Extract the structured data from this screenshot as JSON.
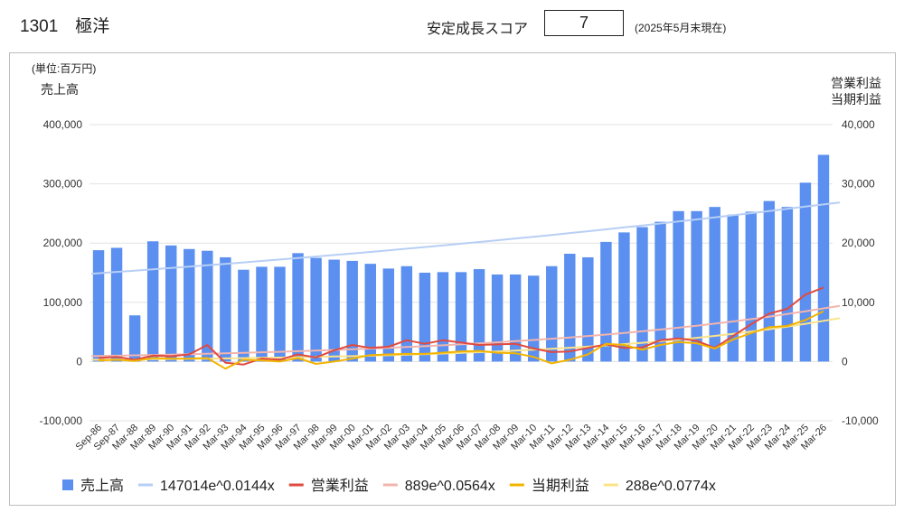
{
  "header": {
    "company": "1301　極洋",
    "score_label": "安定成長スコア",
    "score_value": "7",
    "score_date": "(2025年5月末現在)"
  },
  "chart_data": {
    "type": "bar",
    "unit_label": "(単位:百万円)",
    "ylabel_left": "売上高",
    "ylabel_right_line1": "営業利益",
    "ylabel_right_line2": "当期利益",
    "ylim_left": [
      -100000,
      400000
    ],
    "ylim_right": [
      -10000,
      40000
    ],
    "yticks_left": [
      "400,000",
      "300,000",
      "200,000",
      "100,000",
      "0",
      "-100,000"
    ],
    "yticks_right": [
      "40,000",
      "30,000",
      "20,000",
      "10,000",
      "0",
      "-10,000"
    ],
    "grid": true,
    "legend_position": "bottom",
    "categories": [
      "Sep-86",
      "Sep-87",
      "Mar-88",
      "Mar-89",
      "Mar-90",
      "Mar-91",
      "Mar-92",
      "Mar-93",
      "Mar-94",
      "Mar-95",
      "Mar-96",
      "Mar-97",
      "Mar-98",
      "Mar-99",
      "Mar-00",
      "Mar-01",
      "Mar-02",
      "Mar-03",
      "Mar-04",
      "Mar-05",
      "Mar-06",
      "Mar-07",
      "Mar-08",
      "Mar-09",
      "Mar-10",
      "Mar-11",
      "Mar-12",
      "Mar-13",
      "Mar-14",
      "Mar-15",
      "Mar-16",
      "Mar-17",
      "Mar-18",
      "Mar-19",
      "Mar-20",
      "Mar-21",
      "Mar-22",
      "Mar-23",
      "Mar-24",
      "Mar-25",
      "Mar-26"
    ],
    "series": [
      {
        "name": "売上高",
        "kind": "bar",
        "axis": "left",
        "color": "#5b8ff0",
        "values": [
          188000,
          192000,
          78000,
          203000,
          196000,
          190000,
          187000,
          176000,
          155000,
          160000,
          160000,
          183000,
          175000,
          172000,
          170000,
          165000,
          157000,
          161000,
          150000,
          151000,
          151000,
          156000,
          147000,
          147000,
          145000,
          161000,
          182000,
          176000,
          202000,
          218000,
          227000,
          236000,
          254000,
          254000,
          261000,
          248000,
          253000,
          271000,
          261000,
          302000,
          349000
        ]
      },
      {
        "name": "147014e^0.0144x",
        "kind": "trend",
        "axis": "left",
        "color": "#b7cff4",
        "a": 147014,
        "b": 0.0144
      },
      {
        "name": "営業利益",
        "kind": "line",
        "axis": "right",
        "color": "#e04a3f",
        "values": [
          600,
          800,
          300,
          1000,
          900,
          1200,
          2800,
          -200,
          -500,
          500,
          300,
          1200,
          700,
          1900,
          2800,
          2300,
          2500,
          3600,
          3000,
          3600,
          3200,
          2800,
          2900,
          3000,
          2200,
          1600,
          1700,
          2300,
          2900,
          2300,
          2400,
          3600,
          3900,
          3500,
          2300,
          4300,
          6300,
          8100,
          8900,
          11300,
          12500
        ]
      },
      {
        "name": "889e^0.0564x",
        "kind": "trend",
        "axis": "right",
        "color": "#f2b5ad",
        "a": 889,
        "b": 0.0564
      },
      {
        "name": "当期利益",
        "kind": "line",
        "axis": "right",
        "color": "#f3b400",
        "values": [
          200,
          300,
          100,
          600,
          500,
          500,
          600,
          -1200,
          300,
          200,
          0,
          600,
          -400,
          0,
          500,
          1100,
          1200,
          1300,
          1300,
          1500,
          1700,
          1800,
          1500,
          1400,
          800,
          -300,
          300,
          1200,
          3000,
          2800,
          2000,
          2800,
          3300,
          3100,
          2200,
          3700,
          4800,
          5800,
          6000,
          7000,
          8500
        ]
      },
      {
        "name": "288e^0.0774x",
        "kind": "trend",
        "axis": "right",
        "color": "#fbe38a",
        "a": 288,
        "b": 0.0774
      }
    ]
  }
}
